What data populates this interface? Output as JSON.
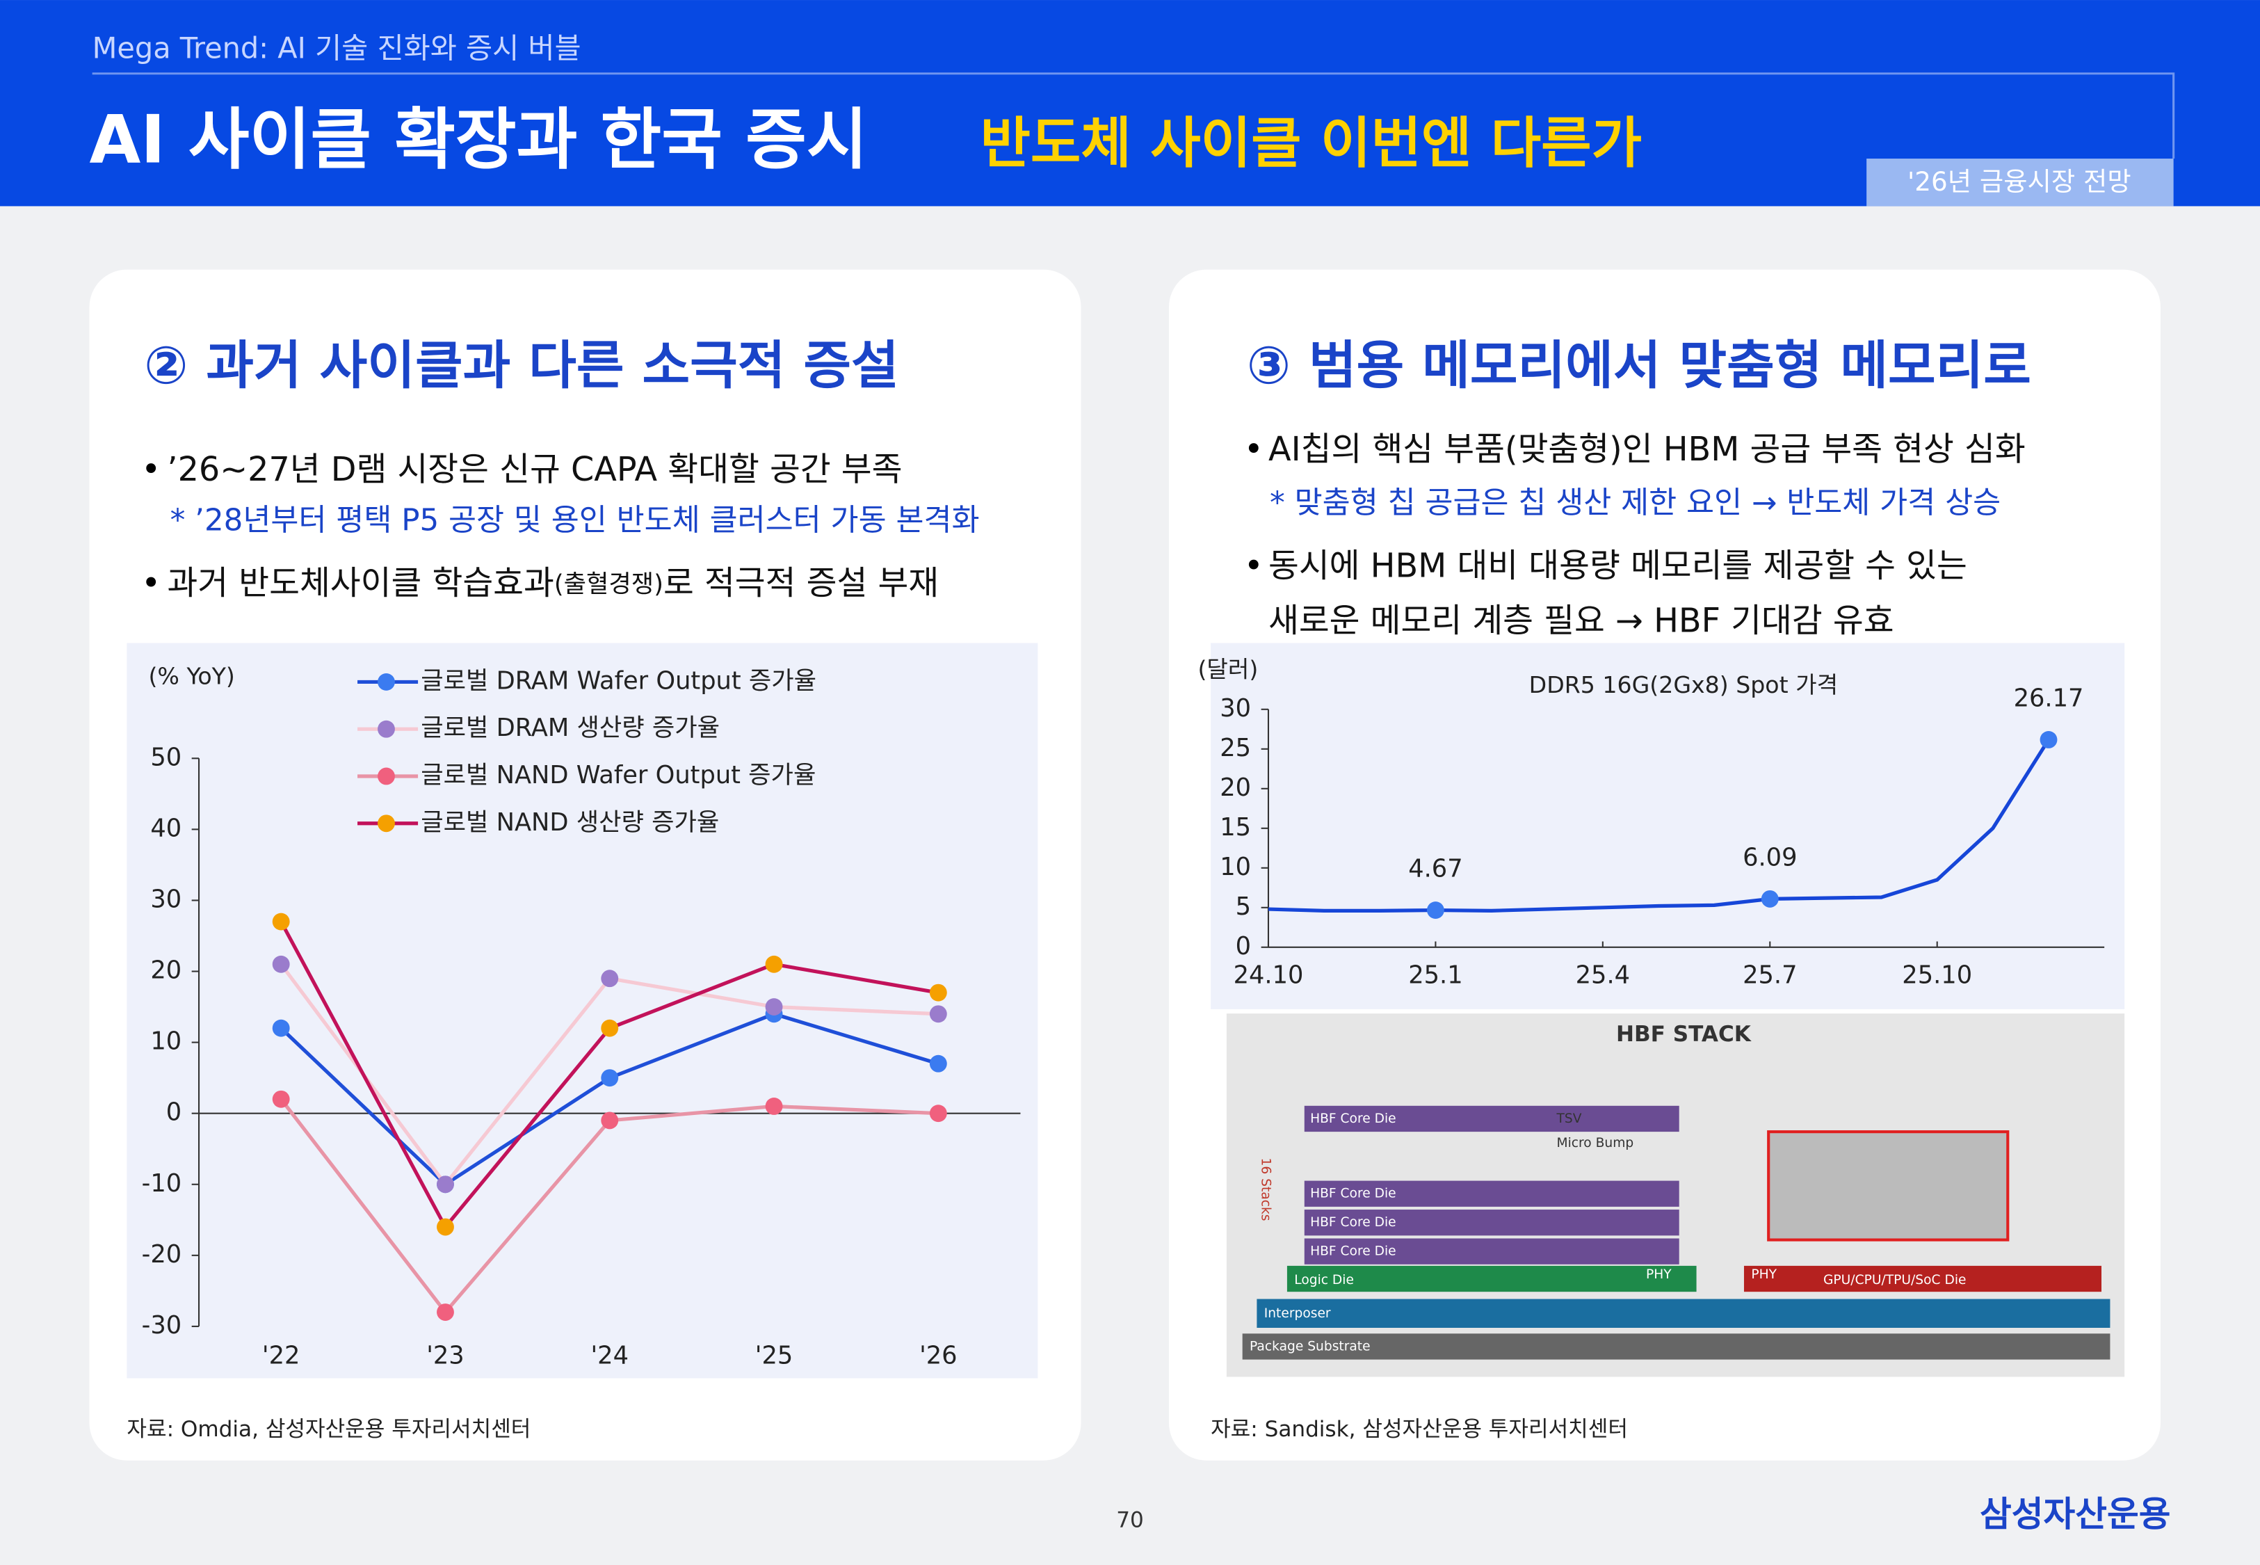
{
  "header": {
    "subtitle": "Mega Trend: AI 기술 진화와 증시 버블",
    "title": "AI 사이클 확장과 한국 증시",
    "title_accent": "반도체 사이클 이번엔 다른가",
    "tag": "'26년 금융시장 전망"
  },
  "left_panel": {
    "heading": "② 과거 사이클과 다른 소극적 증설",
    "bullet_1": "’26~27년 D램 시장은 신규 CAPA 확대할 공간 부족",
    "note_1": "* ’28년부터 평택 P5 공장 및 용인 반도체 클러스터 가동 본격화",
    "bullet_2": [
      "과거 반도체사이클 학습효과",
      "(출혈경쟁)",
      "로 적극적 증설 부재"
    ],
    "source": "자료: Omdia, 삼성자산운용 투자리서치센터"
  },
  "right_panel": {
    "heading": "③ 범용 메모리에서 맞춤형 메모리로",
    "bullet_1": "AI칩의 핵심 부품(맞춤형)인 HBM 공급 부족 현상 심화",
    "note_1": "* 맞춤형 칩 공급은 칩 생산 제한 요인 → 반도체 가격 상승",
    "bullet_2": [
      "동시에 HBM 대비 대용량 메모리를 제공할 수 있는",
      "새로운 메모리 계층 필요 → HBF 기대감 유효"
    ],
    "source": "자료: Sandisk, 삼성자산운용 투자리서치센터"
  },
  "diagram": {
    "title": "HBF STACK",
    "core_dies": [
      "HBF Core Die",
      "HBF Core Die",
      "HBF Core Die",
      "HBF Core Die"
    ],
    "tsv": "TSV",
    "micro_bump": "Micro Bump",
    "stacks": "16 Stacks",
    "logic_die": "Logic Die",
    "phy_1": "PHY",
    "phy_2": "PHY",
    "soc_die": "GPU/CPU/TPU/SoC Die",
    "interposer": "Interposer",
    "substrate": "Package Substrate"
  },
  "chart_data": [
    {
      "type": "line",
      "y_label": "(% YoY)",
      "categories": [
        "'22",
        "'23",
        "'24",
        "'25",
        "'26"
      ],
      "ylim": [
        -30,
        50
      ],
      "yticks": [
        -30,
        -20,
        -10,
        0,
        10,
        20,
        30,
        40,
        50
      ],
      "series": [
        {
          "name": "글로벌 DRAM Wafer Output 증가율",
          "color": "#1f4fd8",
          "marker_color": "#3b7bf0",
          "values": [
            12,
            -10,
            5,
            14,
            7
          ]
        },
        {
          "name": "글로벌 DRAM 생산량 증가율",
          "color": "#f6c9d3",
          "marker_color": "#9a7ccc",
          "values": [
            21,
            -10,
            19,
            15,
            14
          ]
        },
        {
          "name": "글로벌 NAND Wafer Output 증가율",
          "color": "#e894a6",
          "marker_color": "#f0607e",
          "values": [
            2,
            -28,
            -1,
            1,
            0
          ]
        },
        {
          "name": "글로벌 NAND 생산량 증가율",
          "color": "#c2125a",
          "marker_color": "#f5a000",
          "values": [
            27,
            -16,
            12,
            21,
            17
          ]
        }
      ]
    },
    {
      "type": "line",
      "title": "DDR5 16G(2Gx8) Spot 가격",
      "y_label": "(달러)",
      "color": "#1646d8",
      "marker_color": "#3b7bf0",
      "x": [
        "2024-10",
        "2024-11",
        "2024-12",
        "2025-01",
        "2025-02",
        "2025-03",
        "2025-04",
        "2025-05",
        "2025-06",
        "2025-07",
        "2025-08",
        "2025-09",
        "2025-10",
        "2025-11",
        "2025-12"
      ],
      "values": [
        4.8,
        4.6,
        4.6,
        4.67,
        4.6,
        4.8,
        5.0,
        5.2,
        5.3,
        6.09,
        6.2,
        6.3,
        8.5,
        15,
        26.17
      ],
      "labeled_points": [
        3,
        9,
        14
      ],
      "xlim": [
        "2024-10",
        "2026-01"
      ],
      "xticks": [
        {
          "value": "2024-10",
          "label": "24.10"
        },
        {
          "value": "2025-01",
          "label": "25.1"
        },
        {
          "value": "2025-04",
          "label": "25.4"
        },
        {
          "value": "2025-07",
          "label": "25.7"
        },
        {
          "value": "2025-10",
          "label": "25.10"
        }
      ],
      "ylim": [
        0,
        30
      ],
      "yticks": [
        0,
        5,
        10,
        15,
        20,
        25,
        30
      ]
    }
  ],
  "footer": {
    "page": "70",
    "logo": "삼성자산운용"
  }
}
